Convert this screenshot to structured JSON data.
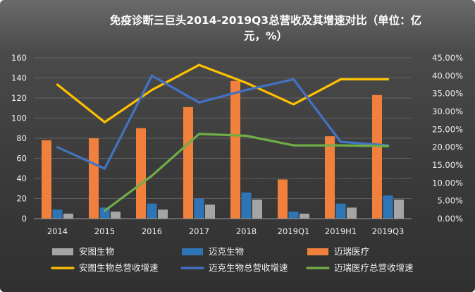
{
  "chart_data": {
    "type": "bar",
    "title_line1": "免疫诊断三巨头2014-2019Q3总营收及其增速对比（单位：亿",
    "title_line2": "元，%）",
    "categories": [
      "2014",
      "2015",
      "2016",
      "2017",
      "2018",
      "2019Q1",
      "2019H1",
      "2019Q3"
    ],
    "left_axis": {
      "ylim": [
        0,
        160
      ],
      "ticks": [
        "0",
        "20",
        "40",
        "60",
        "80",
        "100",
        "120",
        "140",
        "160"
      ]
    },
    "right_axis": {
      "ylim": [
        0,
        0.45
      ],
      "ticks": [
        "0.00%",
        "5.00%",
        "10.00%",
        "15.00%",
        "20.00%",
        "25.00%",
        "30.00%",
        "35.00%",
        "40.00%",
        "45.00%"
      ]
    },
    "bar_series": [
      {
        "name": "迈瑞医疗",
        "color": "#f0803c",
        "values": [
          78,
          80,
          90,
          111,
          137,
          39,
          82,
          123
        ]
      },
      {
        "name": "迈克生物",
        "color": "#2e75b6",
        "values": [
          9,
          11,
          15,
          20,
          26,
          7,
          15,
          23
        ]
      },
      {
        "name": "安图生物",
        "color": "#a5a5a5",
        "values": [
          5,
          7,
          9,
          14,
          19,
          5,
          11,
          19
        ]
      }
    ],
    "line_series": [
      {
        "name": "安图生物总营收增速",
        "color": "#ffc000",
        "values": [
          0.375,
          0.27,
          0.36,
          0.43,
          0.38,
          0.32,
          0.39,
          0.39
        ]
      },
      {
        "name": "迈克生物总营收增速",
        "color": "#4472c4",
        "values": [
          0.2,
          0.14,
          0.4,
          0.325,
          0.36,
          0.39,
          0.215,
          0.205
        ]
      },
      {
        "name": "迈瑞医疗总营收增速",
        "color": "#70ad47",
        "values": [
          null,
          0.022,
          0.12,
          0.237,
          0.232,
          0.205,
          0.205,
          0.203
        ]
      }
    ],
    "legend": [
      {
        "name": "安图生物",
        "kind": "box",
        "color": "#a5a5a5"
      },
      {
        "name": "迈克生物",
        "kind": "box",
        "color": "#2e75b6"
      },
      {
        "name": "迈瑞医疗",
        "kind": "box",
        "color": "#f0803c"
      },
      {
        "name": "安图生物总营收增速",
        "kind": "line",
        "color": "#ffc000"
      },
      {
        "name": "迈克生物总营收增速",
        "kind": "line",
        "color": "#4472c4"
      },
      {
        "name": "迈瑞医疗总营收增速",
        "kind": "line",
        "color": "#70ad47"
      }
    ],
    "legend_placement": "bottom",
    "grid": true
  }
}
